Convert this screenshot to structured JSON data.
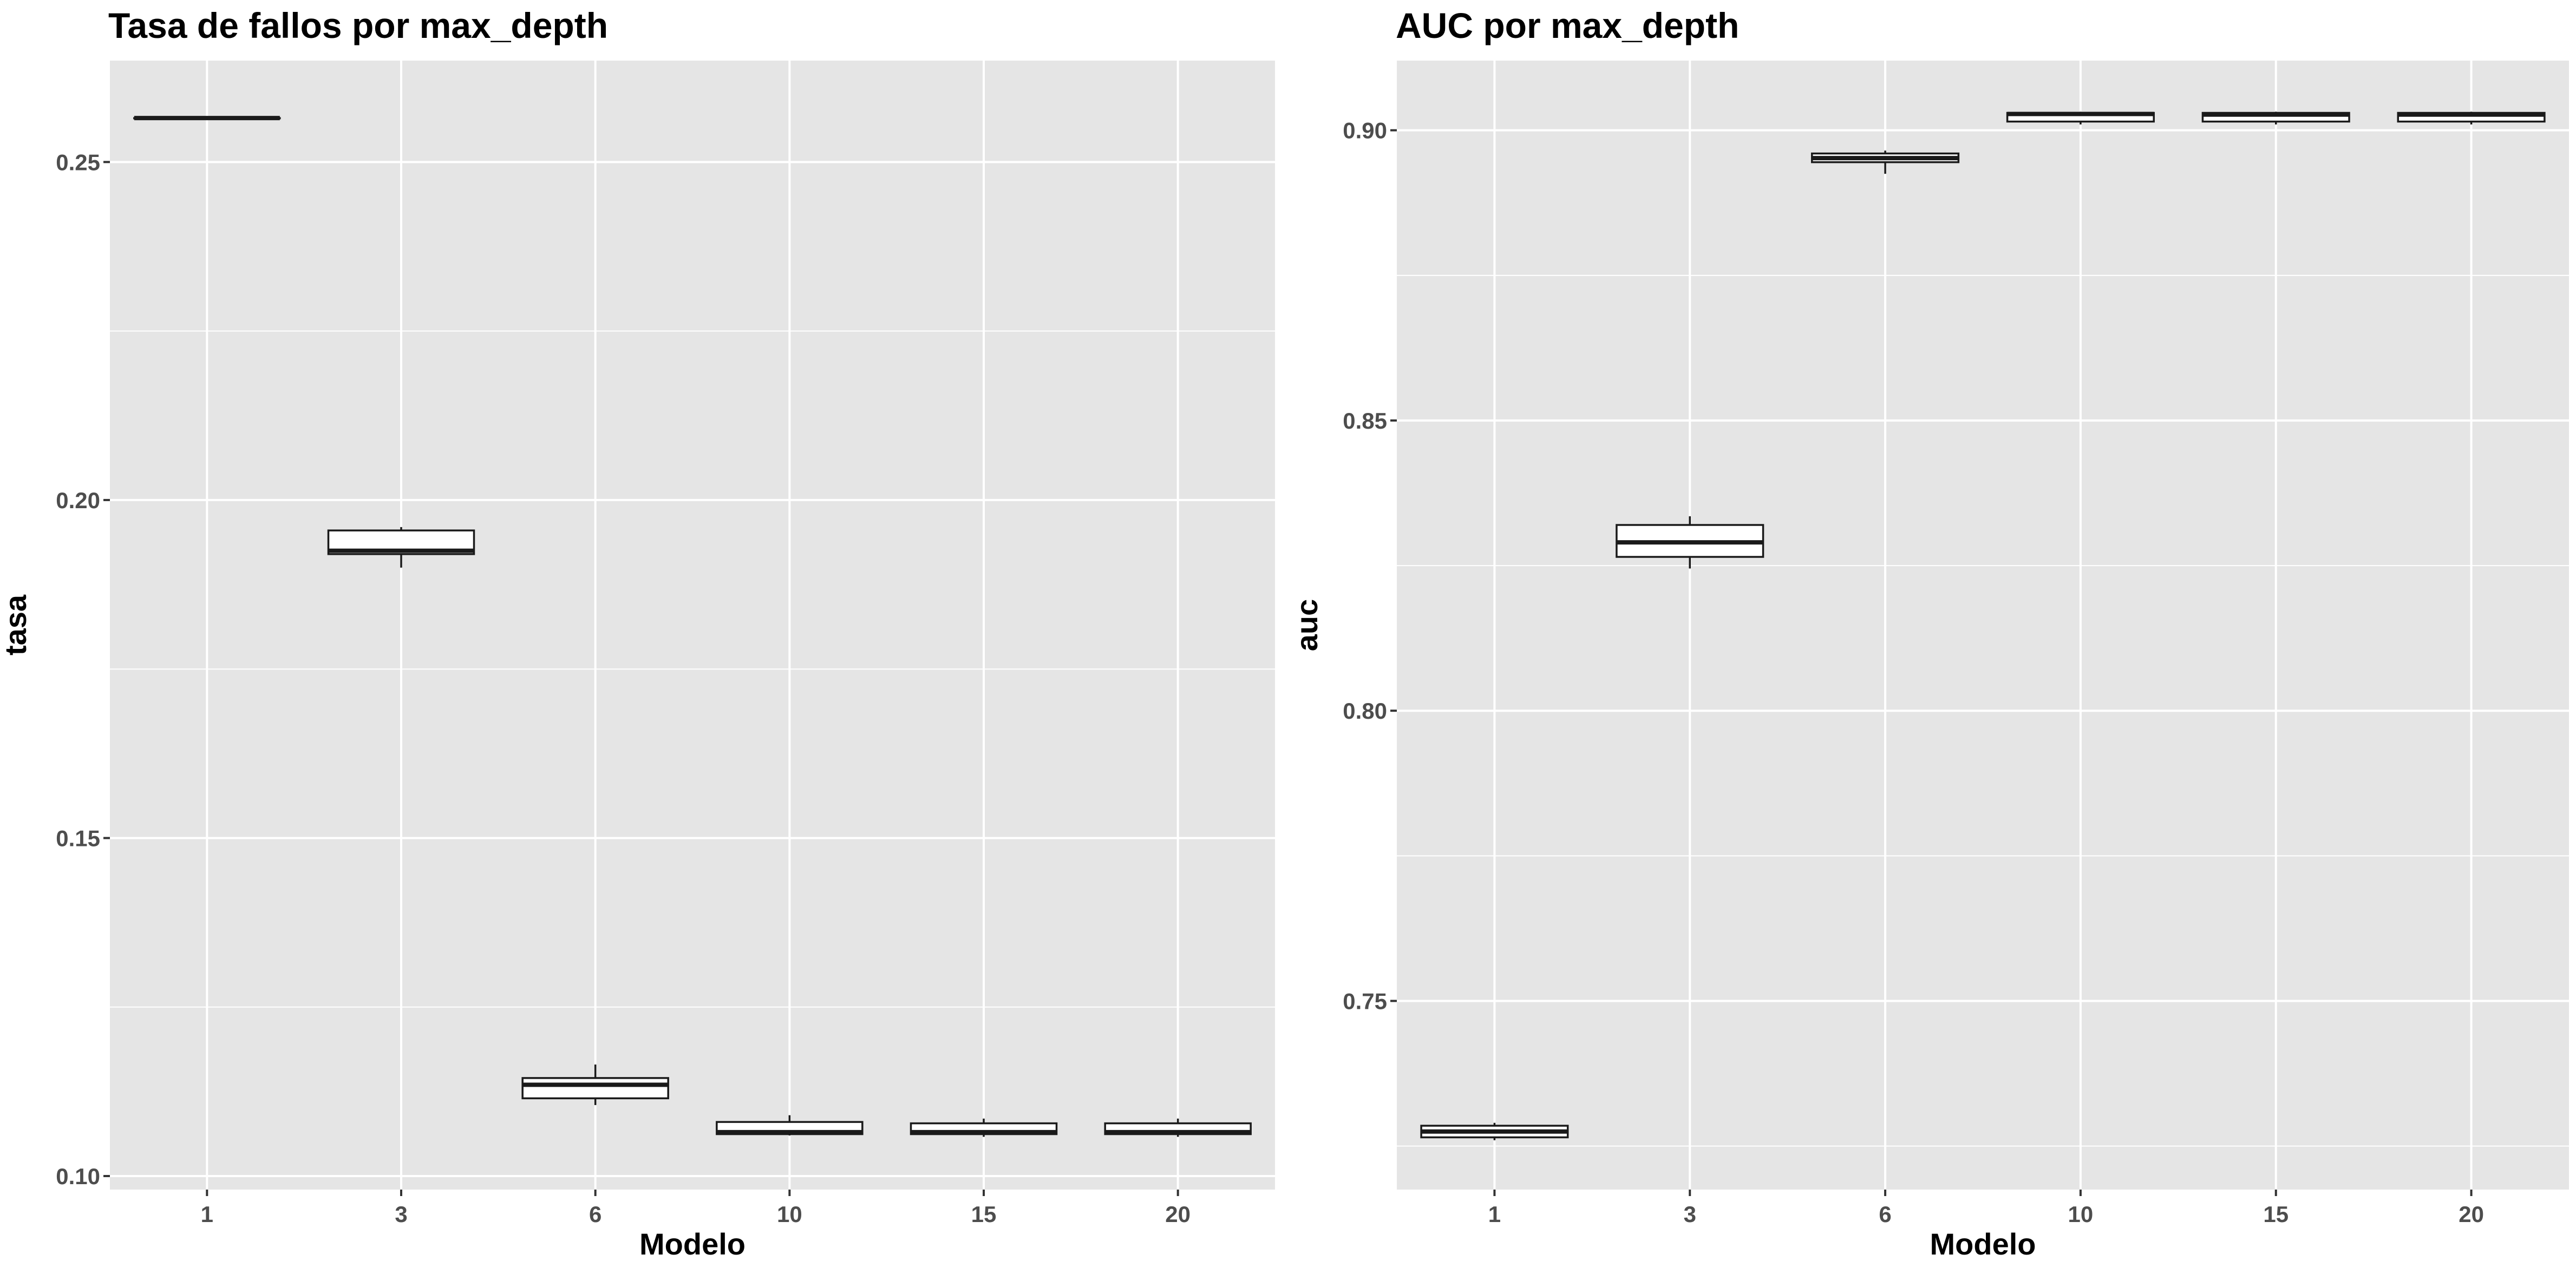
{
  "chart_data": [
    {
      "type": "box",
      "title": "Tasa de fallos por max_depth",
      "xlabel": "Modelo",
      "ylabel": "tasa",
      "categories": [
        "1",
        "3",
        "6",
        "10",
        "15",
        "20"
      ],
      "ylim": [
        0.098,
        0.265
      ],
      "yticks": [
        0.1,
        0.15,
        0.2,
        0.25
      ],
      "ytick_labels": [
        "0.10",
        "0.15",
        "0.20",
        "0.25"
      ],
      "grid": true,
      "boxes": [
        {
          "category": "1",
          "min": 0.2565,
          "q1": 0.2565,
          "median": 0.2565,
          "q3": 0.2565,
          "max": 0.2565
        },
        {
          "category": "3",
          "min": 0.19,
          "q1": 0.192,
          "median": 0.1925,
          "q3": 0.1955,
          "max": 0.196
        },
        {
          "category": "6",
          "min": 0.1105,
          "q1": 0.1115,
          "median": 0.1135,
          "q3": 0.1145,
          "max": 0.1165
        },
        {
          "category": "10",
          "min": 0.106,
          "q1": 0.1062,
          "median": 0.1065,
          "q3": 0.108,
          "max": 0.109
        },
        {
          "category": "15",
          "min": 0.1058,
          "q1": 0.1062,
          "median": 0.1065,
          "q3": 0.1078,
          "max": 0.1085
        },
        {
          "category": "20",
          "min": 0.1058,
          "q1": 0.1062,
          "median": 0.1065,
          "q3": 0.1078,
          "max": 0.1085
        }
      ]
    },
    {
      "type": "box",
      "title": "AUC por max_depth",
      "xlabel": "Modelo",
      "ylabel": "auc",
      "categories": [
        "1",
        "3",
        "6",
        "10",
        "15",
        "20"
      ],
      "ylim": [
        0.7175,
        0.912
      ],
      "yticks": [
        0.75,
        0.8,
        0.85,
        0.9
      ],
      "ytick_labels": [
        "0.75",
        "0.80",
        "0.85",
        "0.90"
      ],
      "grid": true,
      "boxes": [
        {
          "category": "1",
          "min": 0.726,
          "q1": 0.7265,
          "median": 0.7275,
          "q3": 0.7285,
          "max": 0.729
        },
        {
          "category": "3",
          "min": 0.8245,
          "q1": 0.8265,
          "median": 0.829,
          "q3": 0.832,
          "max": 0.8335
        },
        {
          "category": "6",
          "min": 0.8925,
          "q1": 0.8945,
          "median": 0.8952,
          "q3": 0.896,
          "max": 0.8965
        },
        {
          "category": "10",
          "min": 0.901,
          "q1": 0.9015,
          "median": 0.9028,
          "q3": 0.903,
          "max": 0.9032
        },
        {
          "category": "15",
          "min": 0.901,
          "q1": 0.9015,
          "median": 0.9027,
          "q3": 0.903,
          "max": 0.9032
        },
        {
          "category": "20",
          "min": 0.901,
          "q1": 0.9015,
          "median": 0.9027,
          "q3": 0.903,
          "max": 0.9032
        }
      ]
    }
  ],
  "style": {
    "panel_background": "#e5e5e5",
    "grid_color": "#ffffff",
    "box_fill": "#ffffff",
    "box_stroke": "#1a1a1a",
    "tick_label_color": "#4d4d4d"
  }
}
